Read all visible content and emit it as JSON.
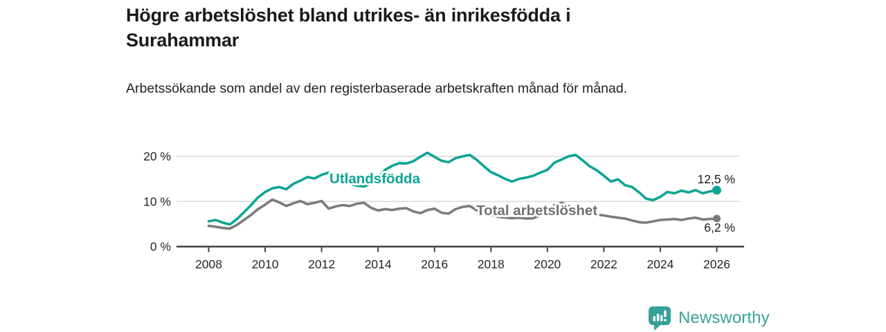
{
  "header": {
    "title": "Högre arbetslöshet bland utrikes- än inrikesfödda i Surahammar",
    "subtitle": "Arbetssökande som andel av den registerbaserade arbetskraften månad för månad."
  },
  "chart_data": {
    "type": "line",
    "title": "Högre arbetslöshet bland utrikes- än inrikesfödda i Surahammar",
    "xlabel": "",
    "ylabel": "",
    "x_range": [
      2008,
      2026
    ],
    "y_range": [
      0,
      22
    ],
    "grid": true,
    "grid_color": "#d9d9d9",
    "axis_color": "#3f3f3f",
    "tick_text_color": "#262626",
    "x_ticks": [
      2008,
      2010,
      2012,
      2014,
      2016,
      2018,
      2020,
      2022,
      2024,
      2026
    ],
    "y_ticks": [
      {
        "value": 0,
        "label": "0 %"
      },
      {
        "value": 10,
        "label": "10 %"
      },
      {
        "value": 20,
        "label": "20 %"
      }
    ],
    "legend_position": "inline-labels",
    "series": [
      {
        "id": "total-arbetsloshet",
        "name": "Total arbetslöshet",
        "color": "#7b7b7b",
        "label_color": "#717171",
        "end_label": "6,2 %",
        "end_value": 6.2,
        "dot_radius": 5.5,
        "label_anchor": {
          "year": 2017.48,
          "value": 7.0
        },
        "end_label_side": "below",
        "points": [
          [
            2008.0,
            4.6
          ],
          [
            2008.25,
            4.4
          ],
          [
            2008.5,
            4.1
          ],
          [
            2008.75,
            4.0
          ],
          [
            2009.0,
            4.8
          ],
          [
            2009.25,
            5.9
          ],
          [
            2009.5,
            7.0
          ],
          [
            2009.75,
            8.3
          ],
          [
            2010.0,
            9.3
          ],
          [
            2010.25,
            10.4
          ],
          [
            2010.5,
            9.8
          ],
          [
            2010.75,
            9.0
          ],
          [
            2011.0,
            9.6
          ],
          [
            2011.25,
            10.1
          ],
          [
            2011.5,
            9.4
          ],
          [
            2011.75,
            9.7
          ],
          [
            2012.0,
            10.1
          ],
          [
            2012.25,
            8.4
          ],
          [
            2012.5,
            8.9
          ],
          [
            2012.75,
            9.2
          ],
          [
            2013.0,
            9.0
          ],
          [
            2013.25,
            9.5
          ],
          [
            2013.5,
            9.7
          ],
          [
            2013.75,
            8.6
          ],
          [
            2014.0,
            8.0
          ],
          [
            2014.25,
            8.3
          ],
          [
            2014.5,
            8.1
          ],
          [
            2014.75,
            8.4
          ],
          [
            2015.0,
            8.5
          ],
          [
            2015.25,
            7.8
          ],
          [
            2015.5,
            7.4
          ],
          [
            2015.75,
            8.1
          ],
          [
            2016.0,
            8.4
          ],
          [
            2016.25,
            7.5
          ],
          [
            2016.5,
            7.3
          ],
          [
            2016.75,
            8.3
          ],
          [
            2017.0,
            8.8
          ],
          [
            2017.25,
            9.0
          ],
          [
            2017.5,
            8.0
          ],
          [
            2017.75,
            7.4
          ],
          [
            2018.0,
            7.0
          ],
          [
            2018.25,
            6.6
          ],
          [
            2018.5,
            6.4
          ],
          [
            2018.75,
            6.3
          ],
          [
            2019.0,
            6.4
          ],
          [
            2019.25,
            6.2
          ],
          [
            2019.5,
            6.3
          ],
          [
            2019.75,
            6.9
          ],
          [
            2020.0,
            7.6
          ],
          [
            2020.25,
            9.2
          ],
          [
            2020.5,
            9.7
          ],
          [
            2020.75,
            9.0
          ],
          [
            2021.0,
            8.4
          ],
          [
            2021.25,
            7.9
          ],
          [
            2021.5,
            7.4
          ],
          [
            2021.75,
            7.1
          ],
          [
            2022.0,
            6.9
          ],
          [
            2022.25,
            6.6
          ],
          [
            2022.5,
            6.4
          ],
          [
            2022.75,
            6.2
          ],
          [
            2023.0,
            5.8
          ],
          [
            2023.25,
            5.4
          ],
          [
            2023.5,
            5.3
          ],
          [
            2023.75,
            5.6
          ],
          [
            2024.0,
            5.9
          ],
          [
            2024.25,
            6.0
          ],
          [
            2024.5,
            6.1
          ],
          [
            2024.75,
            5.9
          ],
          [
            2025.0,
            6.2
          ],
          [
            2025.25,
            6.4
          ],
          [
            2025.5,
            6.0
          ],
          [
            2025.75,
            6.1
          ],
          [
            2026.0,
            6.2
          ]
        ]
      },
      {
        "id": "utlandsfodda",
        "name": "Utlandsfödda",
        "color": "#0ca494",
        "label_color": "#0ca494",
        "end_label": "12,5 %",
        "end_value": 12.5,
        "dot_radius": 6.5,
        "label_anchor": {
          "year": 2012.28,
          "value": 14.0
        },
        "end_label_side": "above",
        "points": [
          [
            2008.0,
            5.6
          ],
          [
            2008.25,
            5.9
          ],
          [
            2008.5,
            5.3
          ],
          [
            2008.75,
            4.9
          ],
          [
            2009.0,
            6.1
          ],
          [
            2009.25,
            7.6
          ],
          [
            2009.5,
            9.2
          ],
          [
            2009.75,
            10.9
          ],
          [
            2010.0,
            12.1
          ],
          [
            2010.25,
            12.9
          ],
          [
            2010.5,
            13.2
          ],
          [
            2010.75,
            12.7
          ],
          [
            2011.0,
            13.9
          ],
          [
            2011.25,
            14.6
          ],
          [
            2011.5,
            15.4
          ],
          [
            2011.75,
            15.1
          ],
          [
            2012.0,
            15.9
          ],
          [
            2012.25,
            16.4
          ],
          [
            2012.5,
            15.1
          ],
          [
            2012.75,
            14.4
          ],
          [
            2013.0,
            13.9
          ],
          [
            2013.25,
            13.5
          ],
          [
            2013.5,
            13.3
          ],
          [
            2013.75,
            14.0
          ],
          [
            2014.0,
            15.3
          ],
          [
            2014.25,
            17.0
          ],
          [
            2014.5,
            17.9
          ],
          [
            2014.75,
            18.5
          ],
          [
            2015.0,
            18.4
          ],
          [
            2015.25,
            18.9
          ],
          [
            2015.5,
            19.9
          ],
          [
            2015.75,
            20.8
          ],
          [
            2016.0,
            19.9
          ],
          [
            2016.25,
            19.0
          ],
          [
            2016.5,
            18.7
          ],
          [
            2016.75,
            19.6
          ],
          [
            2017.0,
            20.0
          ],
          [
            2017.25,
            20.3
          ],
          [
            2017.5,
            19.2
          ],
          [
            2017.75,
            17.8
          ],
          [
            2018.0,
            16.5
          ],
          [
            2018.25,
            15.8
          ],
          [
            2018.5,
            15.0
          ],
          [
            2018.75,
            14.4
          ],
          [
            2019.0,
            15.0
          ],
          [
            2019.25,
            15.3
          ],
          [
            2019.5,
            15.7
          ],
          [
            2019.75,
            16.4
          ],
          [
            2020.0,
            17.0
          ],
          [
            2020.25,
            18.6
          ],
          [
            2020.5,
            19.3
          ],
          [
            2020.75,
            20.0
          ],
          [
            2021.0,
            20.3
          ],
          [
            2021.25,
            19.1
          ],
          [
            2021.5,
            17.8
          ],
          [
            2021.75,
            16.9
          ],
          [
            2022.0,
            15.7
          ],
          [
            2022.25,
            14.4
          ],
          [
            2022.5,
            14.9
          ],
          [
            2022.75,
            13.6
          ],
          [
            2023.0,
            13.2
          ],
          [
            2023.25,
            12.0
          ],
          [
            2023.5,
            10.6
          ],
          [
            2023.75,
            10.3
          ],
          [
            2024.0,
            11.0
          ],
          [
            2024.25,
            12.1
          ],
          [
            2024.5,
            11.8
          ],
          [
            2024.75,
            12.4
          ],
          [
            2025.0,
            12.0
          ],
          [
            2025.25,
            12.5
          ],
          [
            2025.5,
            11.8
          ],
          [
            2025.75,
            12.2
          ],
          [
            2026.0,
            12.5
          ]
        ]
      }
    ]
  },
  "footer": {
    "brand": "Newsworthy",
    "brand_color": "#38a09a"
  }
}
